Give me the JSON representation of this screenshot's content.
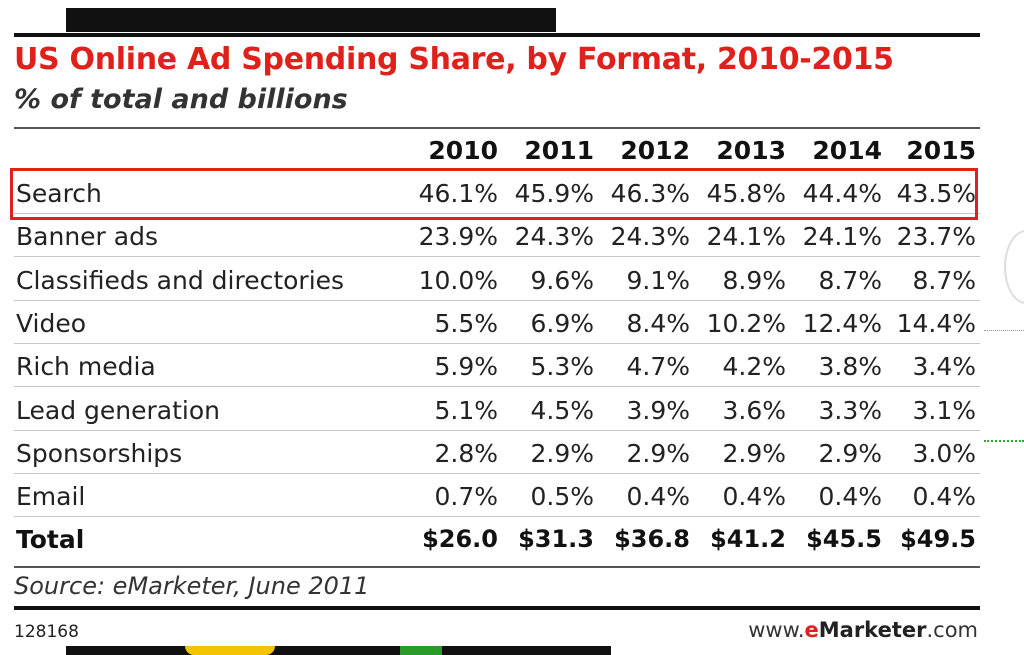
{
  "chart_data": {
    "type": "table",
    "title": "US Online Ad Spending Share, by Format, 2010-2015",
    "subtitle": "% of total and billions",
    "columns": [
      "2010",
      "2011",
      "2012",
      "2013",
      "2014",
      "2015"
    ],
    "rows": [
      {
        "label": "Search",
        "values": [
          "46.1%",
          "45.9%",
          "46.3%",
          "45.8%",
          "44.4%",
          "43.5%"
        ],
        "highlighted": true
      },
      {
        "label": "Banner ads",
        "values": [
          "23.9%",
          "24.3%",
          "24.3%",
          "24.1%",
          "24.1%",
          "23.7%"
        ]
      },
      {
        "label": "Classifieds and directories",
        "values": [
          "10.0%",
          "9.6%",
          "9.1%",
          "8.9%",
          "8.7%",
          "8.7%"
        ]
      },
      {
        "label": "Video",
        "values": [
          "5.5%",
          "6.9%",
          "8.4%",
          "10.2%",
          "12.4%",
          "14.4%"
        ]
      },
      {
        "label": "Rich media",
        "values": [
          "5.9%",
          "5.3%",
          "4.7%",
          "4.2%",
          "3.8%",
          "3.4%"
        ]
      },
      {
        "label": "Lead generation",
        "values": [
          "5.1%",
          "4.5%",
          "3.9%",
          "3.6%",
          "3.3%",
          "3.1%"
        ]
      },
      {
        "label": "Sponsorships",
        "values": [
          "2.8%",
          "2.9%",
          "2.9%",
          "2.9%",
          "2.9%",
          "3.0%"
        ]
      },
      {
        "label": "Email",
        "values": [
          "0.7%",
          "0.5%",
          "0.4%",
          "0.4%",
          "0.4%",
          "0.4%"
        ]
      }
    ],
    "total": {
      "label": "Total",
      "values": [
        "$26.0",
        "$31.3",
        "$36.8",
        "$41.2",
        "$45.5",
        "$49.5"
      ]
    },
    "source": "Source: eMarketer, June 2011",
    "chart_id": "128168"
  },
  "branding": {
    "prefix": "www.",
    "e": "e",
    "marketer": "Marketer",
    "suffix": ".com"
  },
  "colors": {
    "title": "#e0201b",
    "highlight": "#e0201b",
    "rule": "#111111"
  }
}
